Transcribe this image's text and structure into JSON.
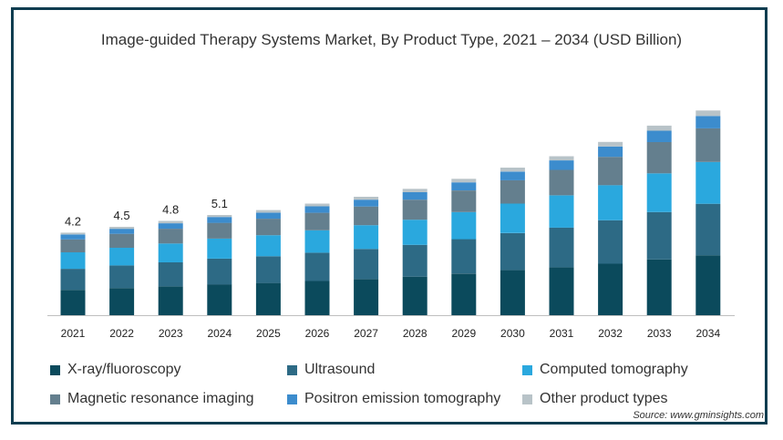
{
  "chart_data": {
    "type": "bar",
    "stacked": true,
    "title": "Image-guided Therapy Systems Market, By Product Type, 2021 – 2034 (USD Billion)",
    "categories": [
      "2021",
      "2022",
      "2023",
      "2024",
      "2025",
      "2026",
      "2027",
      "2028",
      "2029",
      "2030",
      "2031",
      "2032",
      "2033",
      "2034"
    ],
    "totals_labeled": [
      "4.2",
      "4.5",
      "4.8",
      "5.1",
      "",
      "",
      "",
      "",
      "",
      "",
      "",
      "",
      "",
      ""
    ],
    "series": [
      {
        "name": "X-ray/fluoroscopy",
        "color": "#0b4a5c",
        "values": [
          1.29,
          1.38,
          1.47,
          1.57,
          1.64,
          1.74,
          1.84,
          1.96,
          2.12,
          2.3,
          2.44,
          2.62,
          2.84,
          3.05
        ]
      },
      {
        "name": "Ultrasound",
        "color": "#2d6a85",
        "values": [
          1.07,
          1.15,
          1.22,
          1.31,
          1.36,
          1.44,
          1.53,
          1.62,
          1.75,
          1.88,
          2.02,
          2.21,
          2.41,
          2.62
        ]
      },
      {
        "name": "Computed tomography",
        "color": "#2aa8de",
        "values": [
          0.84,
          0.9,
          0.96,
          1.02,
          1.07,
          1.14,
          1.21,
          1.28,
          1.38,
          1.5,
          1.64,
          1.79,
          1.97,
          2.13
        ]
      },
      {
        "name": "Magnetic resonance imaging",
        "color": "#647f8e",
        "values": [
          0.66,
          0.71,
          0.75,
          0.8,
          0.84,
          0.89,
          0.95,
          1.02,
          1.1,
          1.19,
          1.3,
          1.44,
          1.59,
          1.71
        ]
      },
      {
        "name": "Positron emission tomography",
        "color": "#3c8ccd",
        "values": [
          0.25,
          0.26,
          0.28,
          0.3,
          0.31,
          0.33,
          0.35,
          0.38,
          0.41,
          0.44,
          0.48,
          0.53,
          0.58,
          0.63
        ]
      },
      {
        "name": "Other product types",
        "color": "#b8c3c8",
        "values": [
          0.09,
          0.1,
          0.12,
          0.1,
          0.13,
          0.14,
          0.15,
          0.17,
          0.18,
          0.2,
          0.21,
          0.23,
          0.26,
          0.28
        ]
      }
    ],
    "ylim": [
      0,
      11.5
    ],
    "grid": false,
    "legend_position": "bottom"
  },
  "source_text": "Source: www.gminsights.com"
}
